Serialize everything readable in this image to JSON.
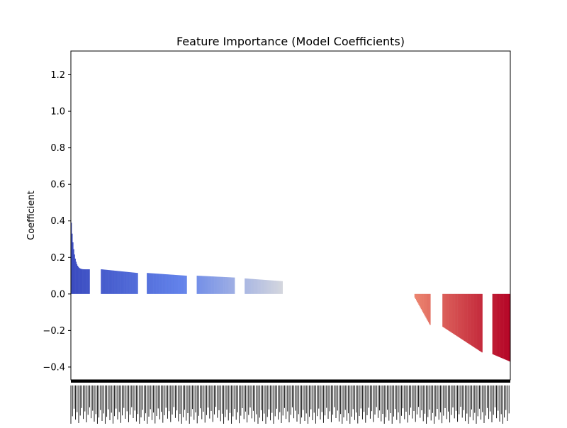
{
  "chart_data": {
    "type": "bar",
    "title": "Feature Importance (Model Coefficients)",
    "xlabel": "",
    "ylabel": "Coefficient",
    "ylim": [
      -0.47,
      1.33
    ],
    "yticks": [
      -0.4,
      -0.2,
      0.0,
      0.2,
      0.4,
      0.6,
      0.8,
      1.0,
      1.2
    ],
    "ytick_labels": [
      "−0.4",
      "−0.2",
      "0.0",
      "0.2",
      "0.4",
      "0.6",
      "0.8",
      "1.0",
      "1.2"
    ],
    "grid": false,
    "legend": "none",
    "colormap": "coolwarm",
    "color_low": "#3b4cc0",
    "color_mid": "#dddddd",
    "color_high": "#b40426",
    "x_tick_labels_note": "category tick labels are dense and illegible",
    "segments": [
      {
        "from": 0.0,
        "to": 0.094,
        "start": 0.39,
        "end": 0.135
      },
      {
        "from": 0.15,
        "to": 0.335,
        "start": 0.135,
        "end": 0.115
      },
      {
        "from": 0.38,
        "to": 0.58,
        "start": 0.115,
        "end": 0.1
      },
      {
        "from": 0.63,
        "to": 0.82,
        "start": 0.1,
        "end": 0.09
      },
      {
        "from": 0.87,
        "to": 1.06,
        "start": 0.085,
        "end": 0.07
      },
      {
        "from": 1.06,
        "to": 1.72,
        "start": 0.0,
        "end": 0.0
      },
      {
        "from": 1.72,
        "to": 1.8,
        "start": -0.02,
        "end": -0.17
      },
      {
        "from": 1.86,
        "to": 2.06,
        "start": -0.18,
        "end": -0.32
      },
      {
        "from": 2.11,
        "to": 2.2,
        "start": -0.33,
        "end": -0.37
      }
    ]
  }
}
